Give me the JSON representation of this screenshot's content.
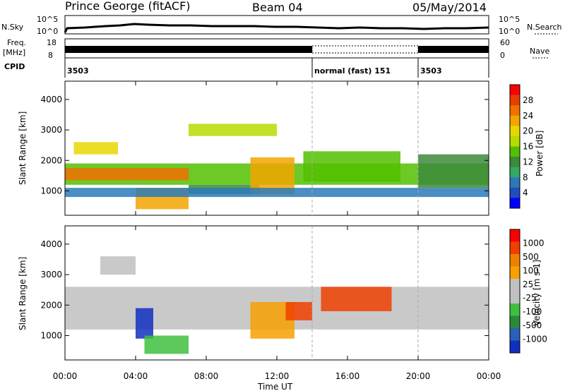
{
  "header": {
    "station": "Prince George (fitACF)",
    "beam": "Beam 04",
    "date": "05/May/2014"
  },
  "strips": {
    "nsky_label": "N.Sky",
    "nsky_ticks": [
      "10^5",
      "10^0"
    ],
    "nsearch_label": "N.Search",
    "nsearch_ticks": [
      "10^5",
      "10^0"
    ],
    "freq_label": "Freq.",
    "freq_unit": "[MHz]",
    "freq_ticks": [
      "18",
      "8"
    ],
    "nave_label": "Nave",
    "nave_ticks": [
      "60",
      "0"
    ],
    "cpid_label": "CPID",
    "cpid_segments": [
      {
        "label": "3503",
        "start_hour": 0
      },
      {
        "label": "normal (fast) 151",
        "start_hour": 14
      },
      {
        "label": "3503",
        "start_hour": 20
      }
    ]
  },
  "colors": {
    "power_scale": [
      "#ff0000",
      "#e83c00",
      "#f07000",
      "#f2a600",
      "#e8d800",
      "#b6dc00",
      "#52c000",
      "#3c8a3c",
      "#33aa66",
      "#2a7ab8",
      "#1f4dbb",
      "#0000ff"
    ],
    "velocity_scale": [
      "#ff0000",
      "#f04000",
      "#f08000",
      "#f7a000",
      "#c0c0c0",
      "#c0c0c0",
      "#40c040",
      "#2a8a3c",
      "#2a60b8",
      "#1030c0"
    ]
  },
  "chart_data": [
    {
      "type": "heatmap",
      "name_panel": "power",
      "xlabel": "",
      "ylabel": "Slant Range [km]",
      "x_ticks": [
        "00:00",
        "04:00",
        "08:00",
        "12:00",
        "16:00",
        "20:00",
        "00:00"
      ],
      "x_tick_hours": [
        0,
        4,
        8,
        12,
        16,
        20,
        24
      ],
      "xlim_hours": [
        0,
        24
      ],
      "y_ticks": [
        1000,
        2000,
        3000,
        4000
      ],
      "ylim": [
        200,
        4600
      ],
      "colorbar_label": "Power [dB]",
      "colorbar_ticks": [
        "28",
        "24",
        "20",
        "16",
        "12",
        "8",
        "4"
      ],
      "clim": [
        0,
        30
      ],
      "bands": [
        {
          "t0": 0,
          "t1": 24,
          "r_min": 1200,
          "r_max": 1900,
          "value": 14
        },
        {
          "t0": 0,
          "t1": 7,
          "r_min": 1350,
          "r_max": 1750,
          "value": 24
        },
        {
          "t0": 0.5,
          "t1": 3,
          "r_min": 2200,
          "r_max": 2600,
          "value": 18
        },
        {
          "t0": 4,
          "t1": 7,
          "r_min": 400,
          "r_max": 1100,
          "value": 20
        },
        {
          "t0": 7,
          "t1": 12,
          "r_min": 2800,
          "r_max": 3200,
          "value": 15
        },
        {
          "t0": 7,
          "t1": 11,
          "r_min": 900,
          "r_max": 1200,
          "value": 10
        },
        {
          "t0": 10.5,
          "t1": 13,
          "r_min": 900,
          "r_max": 2100,
          "value": 22
        },
        {
          "t0": 13.5,
          "t1": 19,
          "r_min": 1300,
          "r_max": 2300,
          "value": 14
        },
        {
          "t0": 0,
          "t1": 24,
          "r_min": 800,
          "r_max": 1100,
          "value": 6
        },
        {
          "t0": 20,
          "t1": 24,
          "r_min": 1100,
          "r_max": 2200,
          "value": 10
        }
      ]
    },
    {
      "type": "heatmap",
      "name_panel": "velocity",
      "xlabel": "Time UT",
      "ylabel": "Slant Range [km]",
      "x_ticks": [
        "00:00",
        "04:00",
        "08:00",
        "12:00",
        "16:00",
        "20:00",
        "00:00"
      ],
      "x_tick_hours": [
        0,
        4,
        8,
        12,
        16,
        20,
        24
      ],
      "xlim_hours": [
        0,
        24
      ],
      "y_ticks": [
        1000,
        2000,
        3000,
        4000
      ],
      "ylim": [
        200,
        4600
      ],
      "colorbar_label": "Velocity [m s-1]",
      "colorbar_ticks": [
        "1000",
        "500",
        "100",
        "25",
        "-25",
        "-100",
        "-500",
        "-1000"
      ],
      "clim": [
        -1000,
        1000
      ],
      "bands": [
        {
          "t0": 0,
          "t1": 24,
          "r_min": 1200,
          "r_max": 2600,
          "value": 0
        },
        {
          "t0": 4,
          "t1": 5,
          "r_min": 900,
          "r_max": 1900,
          "value": -900
        },
        {
          "t0": 4.5,
          "t1": 7,
          "r_min": 400,
          "r_max": 1000,
          "value": -300
        },
        {
          "t0": 2,
          "t1": 4,
          "r_min": 3000,
          "r_max": 3600,
          "value": -150
        },
        {
          "t0": 10.5,
          "t1": 13,
          "r_min": 900,
          "r_max": 2100,
          "value": 300
        },
        {
          "t0": 14.5,
          "t1": 18.5,
          "r_min": 1800,
          "r_max": 2600,
          "value": 700
        },
        {
          "t0": 12.5,
          "t1": 14,
          "r_min": 1500,
          "r_max": 2100,
          "value": 600
        }
      ]
    }
  ]
}
